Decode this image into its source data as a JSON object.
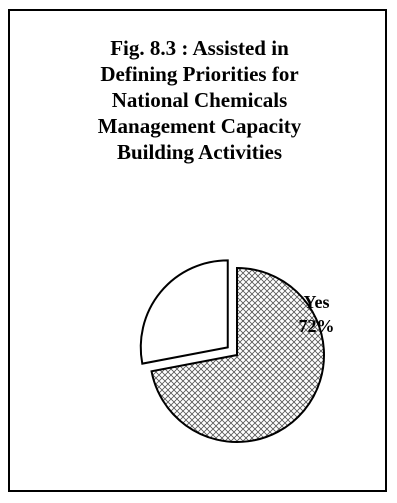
{
  "chart_data": {
    "type": "pie",
    "title": "Fig. 8.3 : Assisted in\nDefining Priorities for\nNational Chemicals\nManagement Capacity\nBuilding Activities",
    "slices": [
      {
        "name": "Yes",
        "value": 72,
        "label": "72%",
        "fill": "hatched",
        "exploded": false
      },
      {
        "name": "",
        "value": 28,
        "label": "",
        "fill": "#ffffff",
        "exploded": true
      }
    ],
    "start_angle_deg": 0,
    "direction": "clockwise",
    "legend": "none"
  }
}
